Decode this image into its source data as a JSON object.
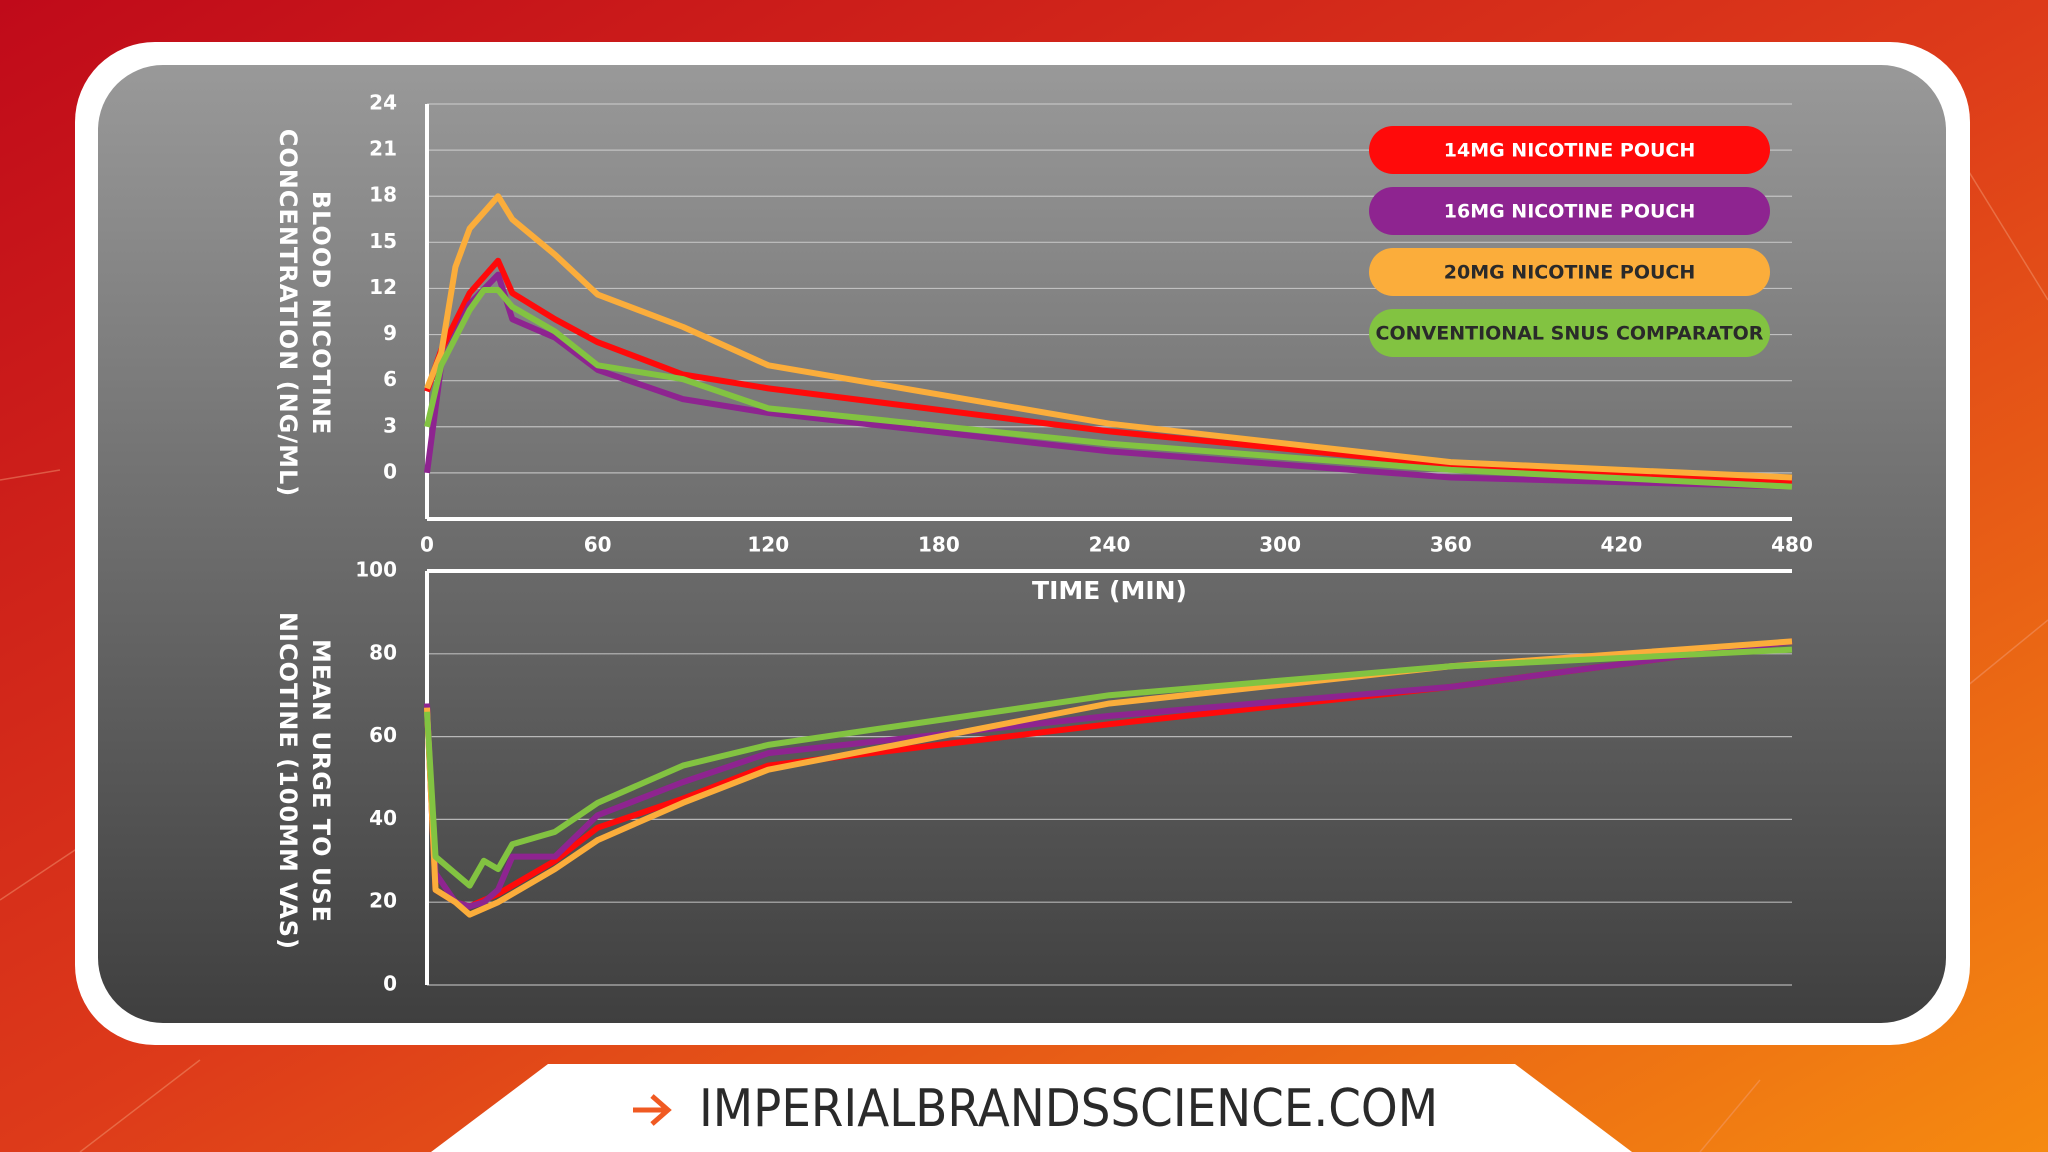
{
  "chart_data": [
    {
      "type": "line",
      "ylabel": [
        "BLOOD NICOTINE",
        "CONCENTRATION (NG/ML)"
      ],
      "xlabel": "TIME (MIN)",
      "xlim": [
        0,
        480
      ],
      "xticks": [
        0,
        60,
        120,
        180,
        240,
        300,
        360,
        420,
        480
      ],
      "ylim": [
        -3,
        24
      ],
      "yticks": [
        0,
        3,
        6,
        9,
        12,
        15,
        18,
        21,
        24
      ],
      "grid": true,
      "legend": "upper right",
      "series": [
        {
          "name": "14MG NICOTINE POUCH",
          "color": "#ff0a0a",
          "x": [
            0,
            5,
            15,
            25,
            30,
            45,
            60,
            90,
            120,
            240,
            360,
            480
          ],
          "values": [
            5.3,
            8,
            11.7,
            13.8,
            11.7,
            10,
            8.5,
            6.4,
            5.5,
            2.7,
            0.5,
            -0.5
          ]
        },
        {
          "name": "16MG NICOTINE POUCH",
          "color": "#8e2490",
          "x": [
            0,
            5,
            15,
            25,
            30,
            45,
            60,
            90,
            120,
            240,
            360,
            480
          ],
          "values": [
            0,
            7,
            11,
            12.9,
            10,
            8.8,
            6.7,
            4.8,
            3.9,
            1.4,
            -0.3,
            -0.9
          ]
        },
        {
          "name": "20MG NICOTINE POUCH",
          "color": "#fbad3b",
          "x": [
            0,
            5,
            10,
            15,
            25,
            30,
            45,
            60,
            90,
            120,
            240,
            360,
            480
          ],
          "values": [
            5.5,
            7.8,
            13.4,
            15.9,
            18,
            16.5,
            14.2,
            11.6,
            9.5,
            7,
            3.2,
            0.7,
            -0.3
          ]
        },
        {
          "name": "CONVENTIONAL SNUS COMPARATOR",
          "color": "#82c341",
          "x": [
            0,
            5,
            15,
            20,
            25,
            30,
            45,
            60,
            90,
            120,
            240,
            360,
            480
          ],
          "values": [
            3,
            7,
            10.6,
            11.9,
            11.9,
            10.8,
            9.2,
            7,
            6.1,
            4.2,
            1.9,
            0.2,
            -0.9
          ]
        }
      ]
    },
    {
      "type": "line",
      "ylabel": [
        "MEAN URGE TO USE",
        "NICOTINE (100MM VAS)"
      ],
      "xlim": [
        0,
        480
      ],
      "ylim": [
        0,
        100
      ],
      "yticks": [
        0,
        20,
        40,
        60,
        80,
        100
      ],
      "grid": true,
      "series": [
        {
          "color": "#ff0a0a",
          "x": [
            0,
            3,
            10,
            15,
            25,
            45,
            60,
            90,
            120,
            240,
            360,
            480
          ],
          "values": [
            67,
            23,
            20,
            19,
            22,
            30,
            38,
            45,
            53,
            63,
            72,
            83
          ]
        },
        {
          "color": "#8e2490",
          "x": [
            0,
            3,
            10,
            15,
            20,
            25,
            30,
            45,
            60,
            90,
            120,
            240,
            360,
            480
          ],
          "values": [
            68,
            27,
            20,
            19,
            20,
            23,
            31,
            31,
            41,
            49,
            56,
            65,
            72,
            83
          ]
        },
        {
          "color": "#fbad3b",
          "x": [
            0,
            3,
            10,
            15,
            25,
            45,
            60,
            90,
            120,
            240,
            360,
            480
          ],
          "values": [
            67,
            23,
            20,
            17,
            20,
            28,
            35,
            44,
            52,
            68,
            77,
            83
          ]
        },
        {
          "color": "#82c341",
          "x": [
            0,
            3,
            15,
            20,
            25,
            30,
            45,
            60,
            90,
            120,
            240,
            360,
            480
          ],
          "values": [
            66,
            31,
            24,
            30,
            28,
            34,
            37,
            44,
            53,
            58,
            70,
            77,
            81
          ]
        }
      ]
    }
  ],
  "footer": {
    "url": "IMPERIALBRANDSSCIENCE.COM"
  }
}
